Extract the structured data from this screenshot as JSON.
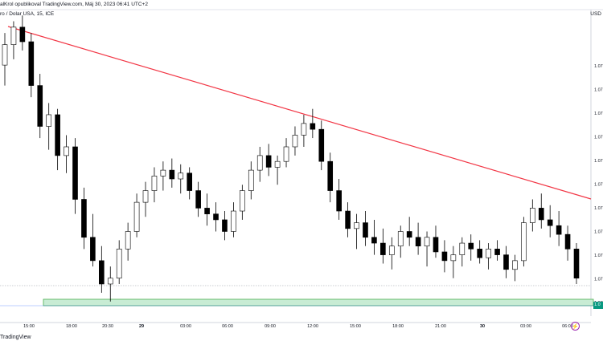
{
  "header": {
    "publisher_line": "alKrol opublikoval TradingView.com, Máj 30, 2023 06:41 UTC+2",
    "symbol_line": "ro / Dolar USA, 15, ICE",
    "currency": "USD",
    "brand": "TradingView",
    "flash_icon": "lightning-icon"
  },
  "chart_data": {
    "type": "candlestick",
    "symbol": "Euro / Dolar USA",
    "interval": "15",
    "exchange": "ICE",
    "x_tick_labels": [
      "15:00",
      "18:00",
      "20:30",
      "29",
      "03:00",
      "06:00",
      "09:00",
      "12:00",
      "15:00",
      "18:00",
      "21:00",
      "30",
      "03:00",
      "06:00"
    ],
    "y_tick_labels": [
      "1.07",
      "1.07",
      "1.07",
      "1.07",
      "1.07",
      "1.07",
      "1.07",
      "1.07",
      "1.07",
      "1.07",
      "1.07"
    ],
    "last_price_label": "1.0",
    "y_range_visible": [
      1.0695,
      1.08
    ],
    "candles": [
      [
        1.0781,
        1.0792,
        1.0774,
        1.0788
      ],
      [
        1.0788,
        1.0796,
        1.0783,
        1.0794
      ],
      [
        1.0794,
        1.0798,
        1.0786,
        1.0789
      ],
      [
        1.0789,
        1.0792,
        1.077,
        1.0774
      ],
      [
        1.0774,
        1.0778,
        1.0756,
        1.076
      ],
      [
        1.076,
        1.0768,
        1.0752,
        1.0764
      ],
      [
        1.0764,
        1.0766,
        1.0745,
        1.075
      ],
      [
        1.075,
        1.0757,
        1.0744,
        1.0753
      ],
      [
        1.0753,
        1.0756,
        1.073,
        1.0735
      ],
      [
        1.0735,
        1.0739,
        1.0718,
        1.0722
      ],
      [
        1.0722,
        1.073,
        1.0712,
        1.0714
      ],
      [
        1.0714,
        1.0719,
        1.0703,
        1.0706
      ],
      [
        1.0706,
        1.0712,
        1.07,
        1.0708
      ],
      [
        1.0708,
        1.0721,
        1.0706,
        1.0718
      ],
      [
        1.0718,
        1.0727,
        1.0714,
        1.0724
      ],
      [
        1.0724,
        1.0737,
        1.0722,
        1.0734
      ],
      [
        1.0734,
        1.0741,
        1.0729,
        1.0738
      ],
      [
        1.0738,
        1.0746,
        1.0734,
        1.0743
      ],
      [
        1.0743,
        1.0748,
        1.0738,
        1.0745
      ],
      [
        1.0745,
        1.0749,
        1.0739,
        1.0742
      ],
      [
        1.0742,
        1.0747,
        1.0737,
        1.0744
      ],
      [
        1.0744,
        1.0746,
        1.0735,
        1.0738
      ],
      [
        1.0738,
        1.0741,
        1.0729,
        1.0732
      ],
      [
        1.0732,
        1.0737,
        1.0726,
        1.073
      ],
      [
        1.073,
        1.0734,
        1.0724,
        1.0728
      ],
      [
        1.0728,
        1.0731,
        1.0721,
        1.0724
      ],
      [
        1.0724,
        1.0734,
        1.0722,
        1.0731
      ],
      [
        1.0731,
        1.074,
        1.0728,
        1.0738
      ],
      [
        1.0738,
        1.0748,
        1.0735,
        1.0745
      ],
      [
        1.0745,
        1.0753,
        1.0741,
        1.075
      ],
      [
        1.075,
        1.0754,
        1.0743,
        1.0746
      ],
      [
        1.0746,
        1.075,
        1.074,
        1.0748
      ],
      [
        1.0748,
        1.0756,
        1.0746,
        1.0753
      ],
      [
        1.0753,
        1.076,
        1.075,
        1.0757
      ],
      [
        1.0757,
        1.0764,
        1.0753,
        1.0761
      ],
      [
        1.0761,
        1.0766,
        1.0756,
        1.0759
      ],
      [
        1.0759,
        1.0762,
        1.0745,
        1.0748
      ],
      [
        1.0748,
        1.0751,
        1.0734,
        1.0738
      ],
      [
        1.0738,
        1.0742,
        1.0728,
        1.0731
      ],
      [
        1.0731,
        1.0734,
        1.0722,
        1.0725
      ],
      [
        1.0725,
        1.073,
        1.0718,
        1.0727
      ],
      [
        1.0727,
        1.0731,
        1.0719,
        1.0722
      ],
      [
        1.0722,
        1.0728,
        1.0716,
        1.072
      ],
      [
        1.072,
        1.0725,
        1.0713,
        1.0716
      ],
      [
        1.0716,
        1.0722,
        1.0711,
        1.0719
      ],
      [
        1.0719,
        1.0726,
        1.0715,
        1.0724
      ],
      [
        1.0724,
        1.0729,
        1.0719,
        1.0722
      ],
      [
        1.0722,
        1.0727,
        1.0716,
        1.0719
      ],
      [
        1.0719,
        1.0724,
        1.0712,
        1.0722
      ],
      [
        1.0722,
        1.0726,
        1.0715,
        1.0717
      ],
      [
        1.0717,
        1.0721,
        1.071,
        1.0714
      ],
      [
        1.0714,
        1.0719,
        1.0708,
        1.0716
      ],
      [
        1.0716,
        1.0722,
        1.0712,
        1.072
      ],
      [
        1.072,
        1.0723,
        1.0714,
        1.0718
      ],
      [
        1.0718,
        1.0721,
        1.0713,
        1.0715
      ],
      [
        1.0715,
        1.072,
        1.0711,
        1.0718
      ],
      [
        1.0718,
        1.0721,
        1.0714,
        1.0716
      ],
      [
        1.0716,
        1.0719,
        1.0708,
        1.0711
      ],
      [
        1.0711,
        1.0716,
        1.0707,
        1.0714
      ],
      [
        1.0714,
        1.0729,
        1.0712,
        1.0727
      ],
      [
        1.0727,
        1.0735,
        1.0724,
        1.0732
      ],
      [
        1.0732,
        1.0737,
        1.0725,
        1.0728
      ],
      [
        1.0728,
        1.0733,
        1.0722,
        1.0726
      ],
      [
        1.0726,
        1.0731,
        1.0719,
        1.0723
      ],
      [
        1.0723,
        1.0726,
        1.0714,
        1.0718
      ],
      [
        1.0718,
        1.072,
        1.0706,
        1.0708
      ]
    ],
    "trendline": {
      "from": {
        "x_label": "start",
        "y": 1.0795
      },
      "to": {
        "x_label": "end",
        "y": 1.073
      },
      "color": "#f23645"
    },
    "support_zone": {
      "y_low": 1.0696,
      "y_high": 1.0699,
      "fill": "#c8ecd4",
      "stroke": "#4caf50"
    },
    "colors": {
      "up": "#ffffff",
      "down": "#000000",
      "wick": "#000000"
    },
    "grid": true
  }
}
